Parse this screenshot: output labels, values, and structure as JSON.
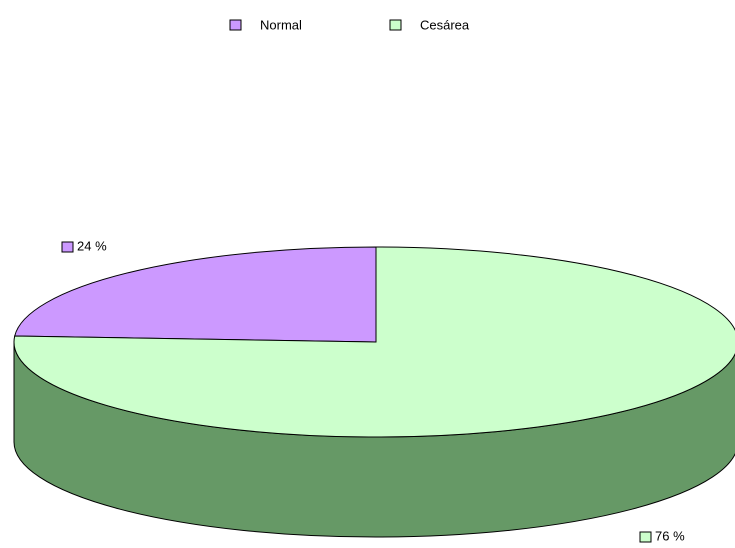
{
  "chart_data": {
    "type": "pie",
    "three_d": true,
    "categories": [
      "Normal",
      "Cesárea"
    ],
    "values": [
      24,
      76
    ],
    "value_labels": [
      "24 %",
      "76 %"
    ],
    "colors": [
      "#cc99ff",
      "#ccffcc"
    ],
    "side_colors": [
      "#8a66b0",
      "#669966"
    ],
    "legend": "top"
  }
}
